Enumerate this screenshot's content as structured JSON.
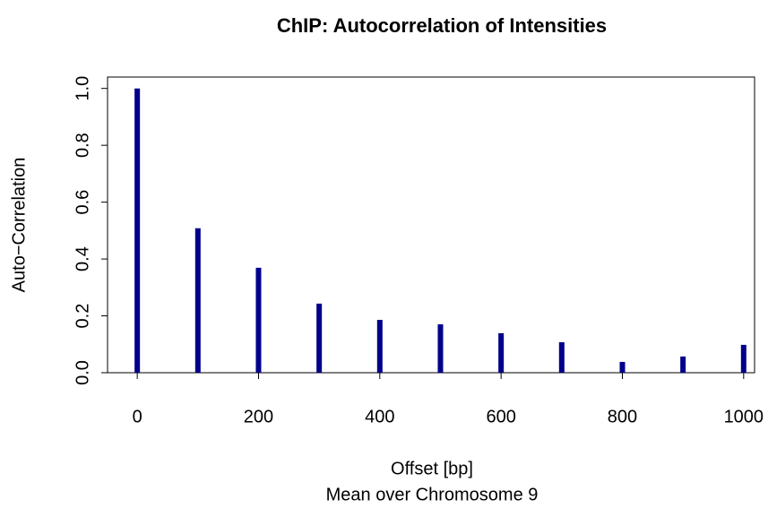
{
  "chart_data": {
    "type": "spike",
    "title": "ChIP: Autocorrelation of Intensities",
    "x_label": "Offset [bp]",
    "subtitle": "Mean over Chromosome 9",
    "y_label": "Auto−Correlation",
    "x": [
      0,
      100,
      200,
      300,
      400,
      500,
      600,
      700,
      800,
      900,
      1000
    ],
    "values": [
      1.0,
      0.508,
      0.369,
      0.243,
      0.186,
      0.17,
      0.139,
      0.107,
      0.038,
      0.057,
      0.098
    ],
    "color": "#00008b",
    "xlim": [
      -49,
      1018
    ],
    "ylim": [
      0,
      1.04
    ],
    "xticks": [
      0,
      200,
      400,
      600,
      800,
      1000
    ],
    "yticks": [
      {
        "value": 0,
        "label": "0.0"
      },
      0.2,
      0.4,
      0.6,
      0.8,
      {
        "value": 1,
        "label": "1.0"
      }
    ]
  }
}
